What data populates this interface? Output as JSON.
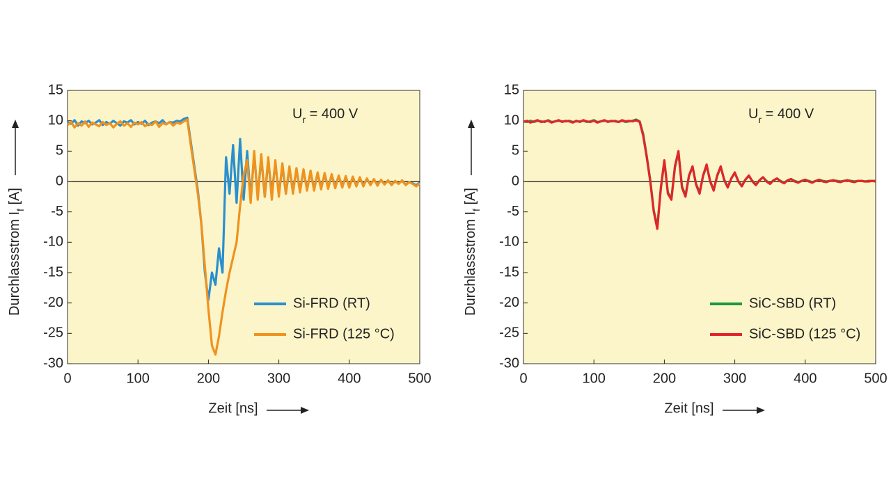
{
  "chart_data": [
    {
      "type": "line",
      "annotation": [
        "U",
        "r",
        " = 400 V"
      ],
      "xlabel": "Zeit [ns]",
      "ylabel": [
        "Durchlassstrom I",
        "f",
        " [A]"
      ],
      "xlim": [
        0,
        500
      ],
      "ylim": [
        -30,
        15
      ],
      "xticks": [
        0,
        100,
        200,
        300,
        400,
        500
      ],
      "yticks": [
        15,
        10,
        5,
        0,
        -5,
        -10,
        -15,
        -20,
        -25,
        -30
      ],
      "legend": "lower right",
      "x": [
        0,
        5,
        10,
        15,
        20,
        25,
        30,
        35,
        40,
        45,
        50,
        55,
        60,
        65,
        70,
        75,
        80,
        85,
        90,
        95,
        100,
        105,
        110,
        115,
        120,
        125,
        130,
        135,
        140,
        145,
        150,
        155,
        160,
        165,
        170,
        175,
        180,
        185,
        190,
        195,
        200,
        205,
        210,
        215,
        220,
        225,
        230,
        235,
        240,
        245,
        250,
        255,
        260,
        265,
        270,
        275,
        280,
        285,
        290,
        295,
        300,
        305,
        310,
        315,
        320,
        325,
        330,
        335,
        340,
        345,
        350,
        355,
        360,
        365,
        370,
        375,
        380,
        385,
        390,
        395,
        400,
        405,
        410,
        415,
        420,
        425,
        430,
        435,
        440,
        445,
        450,
        455,
        460,
        465,
        470,
        475,
        480,
        485,
        490,
        495,
        500
      ],
      "series": [
        {
          "name": "Si-FRD (RT)",
          "color": "#2a8fcf",
          "values": [
            9.8,
            9.5,
            10.1,
            9.2,
            9.9,
            9.6,
            10.0,
            9.4,
            9.7,
            10.1,
            9.3,
            9.8,
            9.5,
            10.0,
            9.6,
            9.2,
            9.9,
            9.7,
            10.1,
            9.4,
            9.8,
            9.5,
            10.0,
            9.3,
            9.7,
            9.9,
            9.6,
            10.1,
            9.4,
            9.8,
            9.7,
            10.0,
            9.9,
            10.3,
            10.5,
            6.5,
            2.5,
            -1.5,
            -7,
            -15,
            -19.5,
            -15,
            -17,
            -11,
            -15,
            4,
            -2,
            6,
            -3.5,
            7,
            -3,
            5,
            -3,
            4.5,
            -2.5,
            4,
            -2.5,
            3.5,
            -2,
            3,
            -2,
            2.5,
            -2,
            2.2,
            -1.5,
            2,
            -1.5,
            1.8,
            -1.3,
            1.5,
            -1.2,
            1.3,
            -1,
            1.1,
            -1,
            1,
            -0.8,
            0.9,
            -0.8,
            0.7,
            -0.7,
            0.6,
            -0.6,
            0.5,
            -0.5,
            0.4,
            -0.5,
            0.3,
            -0.5,
            0.2,
            -0.4,
            0.1,
            -0.5,
            0,
            -0.3,
            0.1,
            -0.5,
            -0.1,
            -0.3,
            -0.6,
            -0.2
          ]
        },
        {
          "name": "Si-FRD (125 °C)",
          "color": "#f0921e",
          "values": [
            9.3,
            9.8,
            8.9,
            9.6,
            9.2,
            9.9,
            9.0,
            9.7,
            9.4,
            9.1,
            9.8,
            9.3,
            9.6,
            8.9,
            9.5,
            9.9,
            9.2,
            9.6,
            9.0,
            9.7,
            9.4,
            9.8,
            9.1,
            9.5,
            9.3,
            9.9,
            9.0,
            9.6,
            9.4,
            9.8,
            9.2,
            9.7,
            9.5,
            9.9,
            10.2,
            6,
            2,
            -2,
            -7,
            -14,
            -21,
            -27,
            -28.5,
            -25.5,
            -21.5,
            -18,
            -15,
            -12.5,
            -10,
            -4,
            1,
            3.5,
            -3.5,
            5,
            -3,
            4.5,
            -2.5,
            4,
            -3,
            3.5,
            -2.5,
            3,
            -2,
            2.5,
            -2,
            2.2,
            -1.8,
            2,
            -1.5,
            1.8,
            -1.5,
            1.5,
            -1.3,
            1.4,
            -1.2,
            1.2,
            -1.1,
            1,
            -1,
            0.9,
            -1,
            0.8,
            -0.8,
            0.7,
            -0.8,
            0.5,
            -0.6,
            0.4,
            -0.7,
            0.3,
            -0.5,
            0.2,
            -0.6,
            0.1,
            -0.4,
            0.2,
            -0.6,
            -0.1,
            -0.4,
            -0.8,
            -0.3
          ]
        }
      ]
    },
    {
      "type": "line",
      "annotation": [
        "U",
        "r",
        " = 400 V"
      ],
      "xlabel": "Zeit [ns]",
      "ylabel": [
        "Durchlassstrom I",
        "f",
        " [A]"
      ],
      "xlim": [
        0,
        500
      ],
      "ylim": [
        -30,
        15
      ],
      "xticks": [
        0,
        100,
        200,
        300,
        400,
        500
      ],
      "yticks": [
        15,
        10,
        5,
        0,
        -5,
        -10,
        -15,
        -20,
        -25,
        -30
      ],
      "legend": "lower right",
      "x": [
        0,
        5,
        10,
        15,
        20,
        25,
        30,
        35,
        40,
        45,
        50,
        55,
        60,
        65,
        70,
        75,
        80,
        85,
        90,
        95,
        100,
        105,
        110,
        115,
        120,
        125,
        130,
        135,
        140,
        145,
        150,
        155,
        160,
        165,
        170,
        175,
        180,
        185,
        190,
        195,
        200,
        205,
        210,
        215,
        220,
        225,
        230,
        235,
        240,
        245,
        250,
        255,
        260,
        265,
        270,
        275,
        280,
        285,
        290,
        295,
        300,
        305,
        310,
        315,
        320,
        325,
        330,
        335,
        340,
        345,
        350,
        355,
        360,
        365,
        370,
        375,
        380,
        385,
        390,
        395,
        400,
        405,
        410,
        415,
        420,
        425,
        430,
        435,
        440,
        445,
        450,
        455,
        460,
        465,
        470,
        475,
        480,
        485,
        490,
        495,
        500
      ],
      "series": [
        {
          "name": "SiC-SBD (RT)",
          "color": "#1a9a3a",
          "values": [
            9.9,
            9.8,
            10.0,
            9.8,
            10.0,
            9.9,
            9.8,
            10.1,
            9.8,
            9.9,
            10.0,
            9.9,
            9.9,
            10.0,
            9.8,
            9.9,
            9.9,
            10.0,
            9.8,
            9.9,
            10.1,
            9.8,
            9.9,
            10.0,
            9.9,
            9.9,
            10.0,
            9.8,
            10.0,
            9.8,
            9.9,
            10.0,
            10.2,
            9.9,
            7.8,
            4.2,
            0.2,
            -4.8,
            -7.4,
            -1.2,
            3.3,
            -1.8,
            -2.8,
            2.3,
            4.8,
            -0.8,
            -2.3,
            0.9,
            2.4,
            -0.4,
            -1.8,
            0.9,
            2.6,
            0.1,
            -1.4,
            0.9,
            2.4,
            0.3,
            -0.9,
            0.5,
            1.4,
            0.1,
            -0.7,
            0.3,
            0.9,
            0.1,
            -0.5,
            0.2,
            0.7,
            0.1,
            -0.3,
            0.2,
            0.5,
            0.1,
            -0.2,
            0.2,
            0.4,
            0.1,
            -0.1,
            0.1,
            0.3,
            0.1,
            -0.1,
            0.1,
            0.3,
            0.1,
            0,
            0.1,
            0.2,
            0.1,
            0,
            0.1,
            0.2,
            0.1,
            0,
            0.1,
            0.1,
            0,
            0.1,
            0.1,
            0.1
          ]
        },
        {
          "name": "SiC-SBD (125 °C)",
          "color": "#e3242b",
          "values": [
            9.8,
            10.0,
            9.7,
            9.9,
            10.1,
            9.8,
            9.9,
            10.0,
            9.7,
            9.9,
            10.1,
            9.8,
            10.0,
            9.9,
            9.7,
            10.0,
            9.8,
            10.1,
            9.9,
            9.8,
            10.0,
            9.7,
            9.9,
            10.1,
            9.8,
            10.0,
            9.9,
            9.8,
            10.1,
            9.9,
            10.0,
            9.9,
            10.1,
            9.8,
            7.5,
            4,
            0,
            -5,
            -7.8,
            -1,
            3.5,
            -2,
            -3,
            2.5,
            5,
            -1,
            -2.5,
            1,
            2.5,
            -0.5,
            -2,
            1,
            2.8,
            0,
            -1.5,
            1,
            2.5,
            0.2,
            -1,
            0.5,
            1.5,
            0,
            -0.8,
            0.3,
            1,
            0,
            -0.6,
            0.2,
            0.7,
            0,
            -0.4,
            0.2,
            0.5,
            0,
            -0.3,
            0.2,
            0.4,
            0,
            -0.2,
            0.1,
            0.3,
            0,
            -0.2,
            0.1,
            0.3,
            0,
            -0.1,
            0.1,
            0.2,
            0,
            -0.1,
            0.1,
            0.2,
            0,
            -0.1,
            0.1,
            0.1,
            0,
            0,
            0.1,
            0
          ]
        }
      ]
    }
  ]
}
